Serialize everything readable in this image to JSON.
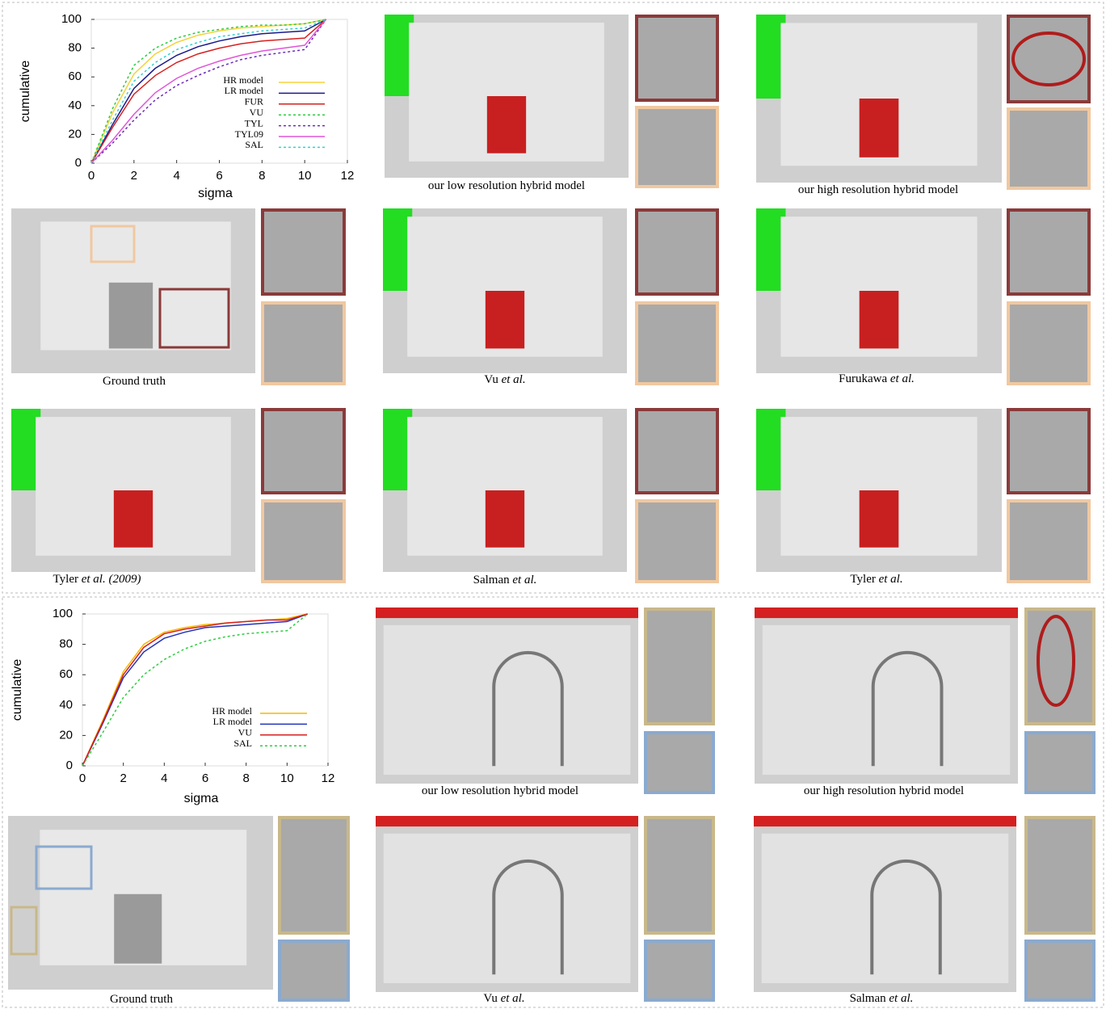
{
  "chart_data": [
    {
      "type": "line",
      "x": [
        0,
        1,
        2,
        3,
        4,
        5,
        6,
        7,
        8,
        9,
        10,
        11
      ],
      "x_label": "sigma",
      "y_label": "cumulative",
      "xlim": [
        0,
        12
      ],
      "xticks": [
        0,
        2,
        4,
        6,
        8,
        10,
        12
      ],
      "ylim": [
        0,
        100
      ],
      "yticks": [
        0,
        20,
        40,
        60,
        80,
        100
      ],
      "series": [
        {
          "name": "HR model",
          "color": "#f5d23c",
          "dashed": false,
          "values": [
            0,
            35,
            62,
            76,
            84,
            89,
            92,
            94,
            95,
            96,
            97,
            100
          ]
        },
        {
          "name": "LR model",
          "color": "#1a1a8c",
          "dashed": false,
          "values": [
            0,
            27,
            52,
            66,
            75,
            81,
            85,
            88,
            90,
            91,
            92,
            100
          ]
        },
        {
          "name": "FUR",
          "color": "#d62020",
          "dashed": false,
          "values": [
            0,
            25,
            48,
            61,
            70,
            76,
            80,
            83,
            85,
            86,
            87,
            100
          ]
        },
        {
          "name": "VU",
          "color": "#2ecc40",
          "dashed": true,
          "values": [
            0,
            38,
            68,
            80,
            87,
            91,
            93,
            95,
            96,
            96,
            97,
            100
          ]
        },
        {
          "name": "TYL",
          "color": "#6a2cb8",
          "dashed": true,
          "values": [
            0,
            14,
            30,
            44,
            54,
            61,
            67,
            72,
            75,
            77,
            79,
            100
          ]
        },
        {
          "name": "TYL09",
          "color": "#e055d8",
          "dashed": false,
          "values": [
            0,
            16,
            34,
            49,
            59,
            66,
            71,
            75,
            78,
            80,
            82,
            100
          ]
        },
        {
          "name": "SAL",
          "color": "#35d0d0",
          "dashed": true,
          "values": [
            0,
            30,
            57,
            70,
            79,
            84,
            88,
            90,
            92,
            93,
            94,
            100
          ]
        }
      ]
    },
    {
      "type": "line",
      "x": [
        0,
        1,
        2,
        3,
        4,
        5,
        6,
        7,
        8,
        9,
        10,
        11
      ],
      "x_label": "sigma",
      "y_label": "cumulative",
      "xlim": [
        0,
        12
      ],
      "xticks": [
        0,
        2,
        4,
        6,
        8,
        10,
        12
      ],
      "ylim": [
        0,
        100
      ],
      "yticks": [
        0,
        20,
        40,
        60,
        80,
        100
      ],
      "series": [
        {
          "name": "HR model",
          "color": "#f5b800",
          "dashed": false,
          "values": [
            0,
            30,
            62,
            80,
            88,
            91,
            93,
            94,
            95,
            96,
            97,
            100
          ]
        },
        {
          "name": "LR model",
          "color": "#2233bb",
          "dashed": false,
          "values": [
            0,
            28,
            58,
            75,
            84,
            88,
            91,
            92,
            93,
            94,
            95,
            100
          ]
        },
        {
          "name": "VU",
          "color": "#d62020",
          "dashed": false,
          "values": [
            0,
            29,
            60,
            78,
            87,
            90,
            92,
            94,
            95,
            96,
            96,
            100
          ]
        },
        {
          "name": "SAL",
          "color": "#2ecc40",
          "dashed": true,
          "values": [
            0,
            22,
            45,
            60,
            70,
            77,
            82,
            85,
            87,
            88,
            89,
            100
          ]
        }
      ]
    }
  ],
  "panels": [
    {
      "caption": "our low resolution hybrid model"
    },
    {
      "caption": "our high resolution hybrid model"
    },
    {
      "caption": "Ground truth"
    },
    {
      "caption": "Vu",
      "caption_em": "et al."
    },
    {
      "caption": "Furukawa",
      "caption_em": "et al."
    },
    {
      "caption": "Tyler",
      "caption_em": "et al. (2009)"
    },
    {
      "caption": "Salman",
      "caption_em": "et al."
    },
    {
      "caption": "Tyler",
      "caption_em": "et al."
    },
    {
      "caption": "our low resolution hybrid model"
    },
    {
      "caption": "our high resolution hybrid model"
    },
    {
      "caption": "Ground truth"
    },
    {
      "caption": "Vu",
      "caption_em": "et al."
    },
    {
      "caption": "Salman",
      "caption_em": "et al."
    }
  ]
}
